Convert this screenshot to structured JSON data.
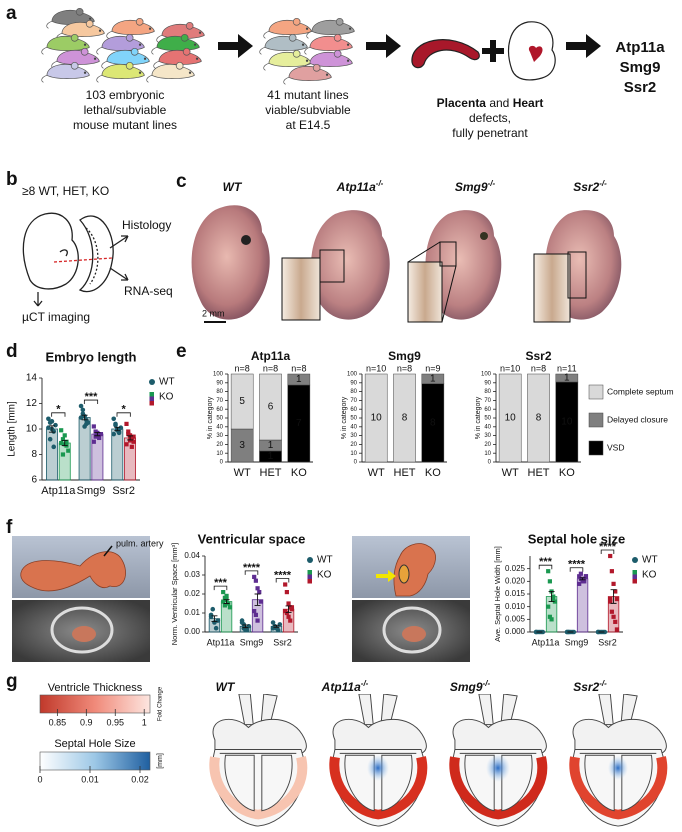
{
  "panel_labels": [
    "a",
    "b",
    "c",
    "d",
    "e",
    "f",
    "g"
  ],
  "panel_a": {
    "lethal": [
      "103 embryonic",
      "lethal/subviable",
      "mouse mutant lines"
    ],
    "viable": [
      "41 mutant lines",
      "viable/subviable",
      "at E14.5"
    ],
    "defects": [
      "Placenta",
      " and ",
      "Heart",
      "defects,",
      "fully penetrant"
    ],
    "genes": [
      "Atp11a",
      "Smg9",
      "Ssr2"
    ]
  },
  "panel_b": {
    "sample": "≥8 WT, HET, KO",
    "histology": "Histology",
    "rnaseq": "RNA-seq",
    "uct": "µCT imaging"
  },
  "panel_c": {
    "genotypes": [
      {
        "gene": "WT"
      },
      {
        "gene": "Atp11a",
        "sup": "-/-"
      },
      {
        "gene": "Smg9",
        "sup": "-/-"
      },
      {
        "gene": "Ssr2",
        "sup": "-/-"
      }
    ],
    "scale": "2 mm"
  },
  "panel_f": {
    "annotation": "pulm. artery"
  },
  "panel_g": {
    "genotypes": [
      {
        "gene": "WT"
      },
      {
        "gene": "Atp11a",
        "sup": "-/-"
      },
      {
        "gene": "Smg9",
        "sup": "-/-"
      },
      {
        "gene": "Ssr2",
        "sup": "-/-"
      }
    ],
    "thickness": {
      "title": "Ventricle Thickness",
      "unit": "Fold Change",
      "range": [
        0.82,
        1.01
      ],
      "ticks": [
        0.85,
        0.9,
        0.95,
        1
      ]
    },
    "hole": {
      "title": "Septal Hole Size",
      "unit": "[mm]",
      "range": [
        0,
        0.022
      ],
      "ticks": [
        0,
        0.01,
        0.02
      ]
    }
  },
  "chart_data": [
    {
      "type": "bar",
      "title": "Embryo length",
      "ylabel": "Length [mm]",
      "categories": [
        "Atp11a",
        "Smg9",
        "Ssr2"
      ],
      "ylim": [
        6,
        14
      ],
      "yticks": [
        6,
        8,
        10,
        12,
        14
      ],
      "significance": [
        "*",
        "***",
        "*"
      ],
      "series": [
        {
          "name": "WT",
          "color": "#1d5c6b",
          "values": [
            10.0,
            10.9,
            10.0
          ],
          "errors": [
            0.25,
            0.18,
            0.13
          ],
          "points": [
            [
              10.8,
              10.5,
              10.0,
              9.8,
              10.3,
              10.1,
              9.2,
              10.6,
              8.6
            ],
            [
              11.8,
              11.5,
              11.0,
              10.7,
              10.5,
              10.9,
              11.2,
              10.2,
              10.4
            ],
            [
              10.8,
              10.3,
              10.0,
              9.8,
              10.1,
              9.6,
              10.4,
              9.9,
              9.7
            ]
          ]
        },
        {
          "name": "KO",
          "colors": [
            "#1a9850",
            "#5e2d91",
            "#b2182b"
          ],
          "values": [
            8.9,
            9.6,
            9.3
          ],
          "errors": [
            0.2,
            0.13,
            0.16
          ],
          "points": [
            [
              9.9,
              9.2,
              8.8,
              9.0,
              8.3,
              8.9,
              8.0,
              9.5,
              8.7
            ],
            [
              10.2,
              9.8,
              9.5,
              9.3,
              9.6,
              9.0,
              9.4,
              9.7
            ],
            [
              10.4,
              9.8,
              9.5,
              9.2,
              9.0,
              8.8,
              9.6,
              9.1,
              8.6,
              9.4
            ]
          ]
        }
      ]
    },
    {
      "type": "stacked_bar",
      "ylabel": "% in category",
      "categories": [
        "WT",
        "HET",
        "KO"
      ],
      "ylim": [
        0,
        100
      ],
      "yticks": [
        0,
        10,
        20,
        30,
        40,
        50,
        60,
        70,
        80,
        90,
        100
      ],
      "series": [
        {
          "name": "Complete septum",
          "color": "#d9d9d9"
        },
        {
          "name": "Delayed closure",
          "color": "#7f7f7f"
        },
        {
          "name": "VSD",
          "color": "#000000"
        }
      ],
      "facets": [
        {
          "title": "Atp11a",
          "n_labels": [
            "n=8",
            "n=8",
            "n=8"
          ],
          "values": [
            [
              5,
              6,
              0
            ],
            [
              3,
              1,
              1
            ],
            [
              0,
              1,
              7
            ]
          ]
        },
        {
          "title": "Smg9",
          "n_labels": [
            "n=10",
            "n=8",
            "n=9"
          ],
          "values": [
            [
              10,
              8,
              0
            ],
            [
              0,
              0,
              1
            ],
            [
              0,
              0,
              8
            ]
          ]
        },
        {
          "title": "Ssr2",
          "n_labels": [
            "n=10",
            "n=8",
            "n=11"
          ],
          "values": [
            [
              10,
              8,
              0
            ],
            [
              0,
              0,
              1
            ],
            [
              0,
              0,
              10
            ]
          ]
        }
      ]
    },
    {
      "type": "bar",
      "title": "Ventricular space",
      "ylabel": "Norm. Ventricular Space [mm³]",
      "categories": [
        "Atp11a",
        "Smg9",
        "Ssr2"
      ],
      "ylim": [
        0,
        0.04
      ],
      "yticks": [
        {
          "value": 0,
          "label": "0.00"
        },
        {
          "value": 0.01,
          "label": "0.01"
        },
        {
          "value": 0.02,
          "label": "0.02"
        },
        {
          "value": 0.03,
          "label": "0.03"
        },
        {
          "value": 0.04,
          "label": "0.04"
        }
      ],
      "significance": [
        "***",
        "****",
        "****"
      ],
      "series": [
        {
          "name": "WT",
          "color": "#1d5c6b",
          "values": [
            0.007,
            0.003,
            0.003
          ],
          "errors": [
            0.0015,
            0.0007,
            0.0005
          ],
          "points": [
            [
              0.009,
              0.012,
              0.005,
              0.002,
              0.006,
              0.008
            ],
            [
              0.006,
              0.004,
              0.002,
              0.001,
              0.003,
              0.005,
              0.002,
              0.001
            ],
            [
              0.005,
              0.003,
              0.002,
              0.001,
              0.004,
              0.002,
              0.003
            ]
          ]
        },
        {
          "name": "KO",
          "colors": [
            "#1a9850",
            "#5e2d91",
            "#b2182b"
          ],
          "values": [
            0.016,
            0.017,
            0.012
          ],
          "errors": [
            0.001,
            0.003,
            0.0017
          ],
          "points": [
            [
              0.021,
              0.018,
              0.017,
              0.015,
              0.013,
              0.016,
              0.014,
              0.019
            ],
            [
              0.029,
              0.027,
              0.023,
              0.021,
              0.016,
              0.011,
              0.009,
              0.006
            ],
            [
              0.025,
              0.021,
              0.015,
              0.013,
              0.012,
              0.011,
              0.01,
              0.008,
              0.006,
              0.013
            ]
          ]
        }
      ]
    },
    {
      "type": "bar",
      "title": "Septal hole size",
      "ylabel": "Ave. Septal Hole Width [mm]",
      "categories": [
        "Atp11a",
        "Smg9",
        "Ssr2"
      ],
      "ylim": [
        0,
        0.03
      ],
      "yticks": [
        {
          "value": 0,
          "label": "0.000"
        },
        {
          "value": 0.005,
          "label": "0.005"
        },
        {
          "value": 0.01,
          "label": "0.010"
        },
        {
          "value": 0.015,
          "label": "0.015"
        },
        {
          "value": 0.02,
          "label": "0.020"
        },
        {
          "value": 0.025,
          "label": "0.025"
        }
      ],
      "significance": [
        "***",
        "****",
        "****"
      ],
      "series": [
        {
          "name": "WT",
          "color": "#1d5c6b",
          "values": [
            0,
            0,
            0
          ],
          "errors": [
            0,
            0,
            0
          ],
          "points": [
            [
              0,
              0,
              0,
              0,
              0,
              0
            ],
            [
              0,
              0,
              0,
              0,
              0,
              0,
              0
            ],
            [
              0,
              0,
              0,
              0,
              0,
              0
            ]
          ]
        },
        {
          "name": "KO",
          "colors": [
            "#1a9850",
            "#5e2d91",
            "#b2182b"
          ],
          "values": [
            0.014,
            0.021,
            0.014
          ],
          "errors": [
            0.002,
            0.0004,
            0.0027
          ],
          "points": [
            [
              0.024,
              0.02,
              0.016,
              0.014,
              0.012,
              0.01,
              0.006,
              0.005,
              0.013
            ],
            [
              0.022,
              0.021,
              0.02,
              0.021,
              0.022,
              0.019,
              0.023,
              0.021,
              0.02,
              0.022
            ],
            [
              0.03,
              0.024,
              0.019,
              0.016,
              0.013,
              0.012,
              0.008,
              0.006,
              0.004,
              0.001,
              0.013
            ]
          ]
        }
      ]
    }
  ]
}
